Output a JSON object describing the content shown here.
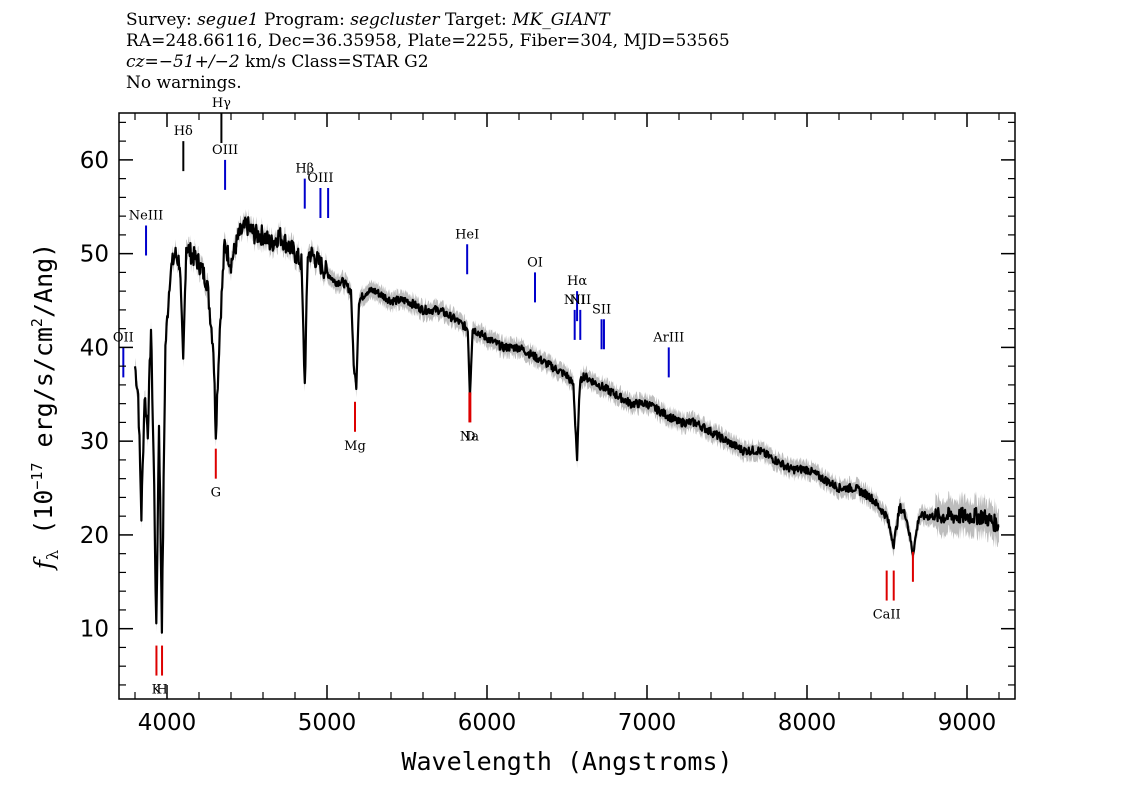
{
  "header": {
    "survey_label": "Survey:",
    "survey": "segue1",
    "program_label": "Program:",
    "program": "segcluster",
    "target_label": "Target:",
    "target": "MK_GIANT",
    "line2": "RA=248.66116, Dec=36.35958, Plate=2255, Fiber=304, MJD=53565",
    "cz_label": "cz=",
    "cz_value": "−51+/−2",
    "cz_unit_class": " km/s Class=STAR G2",
    "line4": "No warnings."
  },
  "chart_data": {
    "type": "line",
    "xlabel": "Wavelength (Angstroms)",
    "ylabel_html": "fλ (10⁻¹⁷ erg/s/cm²/Ang)",
    "ylabel": {
      "f": "f",
      "lambda": "λ",
      "prefix": " (10",
      "exp": "−17",
      "mid": " erg/s/cm",
      "sq": "2",
      "suffix": "/Ang)"
    },
    "xlim": [
      3700,
      9300
    ],
    "ylim": [
      2.5,
      65
    ],
    "x_ticks": [
      4000,
      5000,
      6000,
      7000,
      8000,
      9000
    ],
    "y_ticks": [
      10,
      20,
      30,
      40,
      50,
      60
    ],
    "colors": {
      "spectrum": "#000000",
      "error_band": "#bdbdbd",
      "emission": "#0000cc",
      "absorption": "#dd0000"
    },
    "series": [
      {
        "x": [
          3800,
          3820,
          3840,
          3860,
          3880,
          3900,
          3920,
          3933,
          3950,
          3968,
          3990,
          4020,
          4050,
          4080,
          4101,
          4120,
          4150,
          4200,
          4250,
          4290,
          4305,
          4330,
          4360,
          4400,
          4450,
          4500,
          4550,
          4600,
          4650,
          4700,
          4750,
          4800,
          4840,
          4861,
          4880,
          4900,
          4950,
          5000,
          5050,
          5100,
          5150,
          5167,
          5183,
          5200,
          5250,
          5300,
          5400,
          5500,
          5600,
          5700,
          5800,
          5880,
          5893,
          5910,
          6000,
          6100,
          6200,
          6300,
          6400,
          6500,
          6540,
          6563,
          6580,
          6600,
          6700,
          6800,
          6900,
          7000,
          7100,
          7200,
          7300,
          7400,
          7500,
          7600,
          7700,
          7800,
          7900,
          8000,
          8100,
          8200,
          8300,
          8400,
          8498,
          8542,
          8580,
          8620,
          8662,
          8700,
          8800,
          8900,
          9000,
          9100,
          9200
        ],
        "y": [
          38,
          35,
          22,
          35,
          31,
          42,
          25,
          9.5,
          32,
          10.5,
          40,
          48,
          50,
          49,
          38,
          51,
          50,
          49,
          47,
          40,
          31,
          42,
          51,
          49,
          52,
          53,
          52,
          52,
          51,
          52,
          51,
          50,
          49,
          36,
          50,
          50,
          49,
          48,
          47,
          47,
          46,
          38,
          36,
          45,
          46,
          46,
          45,
          45,
          44,
          44,
          43,
          42,
          35,
          42,
          41,
          40,
          40,
          39,
          38,
          37,
          36,
          28,
          36,
          37,
          36,
          35,
          34,
          34,
          33,
          32,
          32,
          31,
          30,
          29,
          29,
          28,
          27,
          27,
          26,
          25,
          25,
          24,
          22,
          19,
          23,
          22,
          18,
          22,
          22,
          22,
          22,
          22,
          21
        ]
      }
    ],
    "emission_lines": [
      {
        "label": "OII",
        "x": 3727,
        "y": 40
      },
      {
        "label": "NeIII",
        "x": 3869,
        "y": 53
      },
      {
        "label": "Hδ",
        "x": 4102,
        "y": 62
      },
      {
        "label": "Hγ",
        "x": 4340,
        "y": 65
      },
      {
        "label": "OIII",
        "x": 4363,
        "y": 60
      },
      {
        "label": "Hβ",
        "x": 4861,
        "y": 58
      },
      {
        "label": "OIII",
        "x": 4959,
        "y": 57
      },
      {
        "label": "",
        "x": 5007,
        "y": 57
      },
      {
        "label": "HeI",
        "x": 5876,
        "y": 51
      },
      {
        "label": "OI",
        "x": 6300,
        "y": 48
      },
      {
        "label": "NII",
        "x": 6548,
        "y": 44
      },
      {
        "label": "Hα",
        "x": 6563,
        "y": 46
      },
      {
        "label": "NII",
        "x": 6583,
        "y": 44
      },
      {
        "label": "SII",
        "x": 6716,
        "y": 43
      },
      {
        "label": "",
        "x": 6731,
        "y": 43
      },
      {
        "label": "ArIII",
        "x": 7136,
        "y": 40
      }
    ],
    "absorption_lines": [
      {
        "label": "K",
        "x": 3934,
        "y": 5
      },
      {
        "label": "H",
        "x": 3969,
        "y": 5
      },
      {
        "label": "G",
        "x": 4305,
        "y": 26
      },
      {
        "label": "Mg",
        "x": 5175,
        "y": 31
      },
      {
        "label": "Na",
        "x": 5890,
        "y": 32
      },
      {
        "label": "D",
        "x": 5896,
        "y": 32
      },
      {
        "label": "CaII",
        "x": 8498,
        "y": 13
      },
      {
        "label": "",
        "x": 8542,
        "y": 13
      },
      {
        "label": "",
        "x": 8662,
        "y": 15
      }
    ]
  }
}
